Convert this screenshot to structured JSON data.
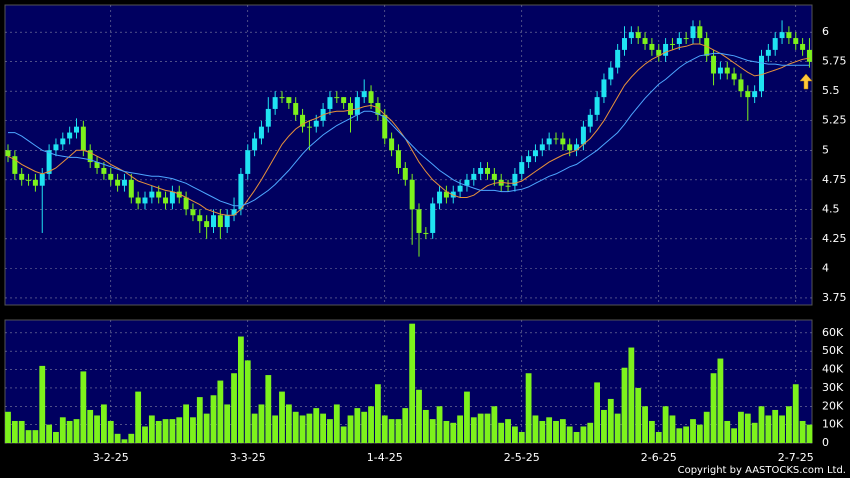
{
  "chart_data": [
    {
      "type": "candlestick",
      "up_color": "#1fe3f2",
      "down_color": "#7df21c",
      "panel_color": "#000060",
      "grid": true,
      "open": [
        5.0,
        4.95,
        4.8,
        4.75,
        4.75,
        4.7,
        4.8,
        5.0,
        5.05,
        5.1,
        5.15,
        5.2,
        5.0,
        4.9,
        4.85,
        4.8,
        4.75,
        4.7,
        4.75,
        4.6,
        4.55,
        4.6,
        4.65,
        4.6,
        4.55,
        4.65,
        4.6,
        4.5,
        4.45,
        4.4,
        4.35,
        4.45,
        4.35,
        4.45,
        4.5,
        4.8,
        5.0,
        5.1,
        5.2,
        5.35,
        5.45,
        5.45,
        5.4,
        5.3,
        5.2,
        5.2,
        5.25,
        5.35,
        5.45,
        5.45,
        5.4,
        5.3,
        5.45,
        5.5,
        5.4,
        5.3,
        5.1,
        5.0,
        4.85,
        4.75,
        4.5,
        4.3,
        4.3,
        4.55,
        4.65,
        4.6,
        4.65,
        4.7,
        4.75,
        4.8,
        4.85,
        4.8,
        4.75,
        4.7,
        4.7,
        4.8,
        4.9,
        4.95,
        5.0,
        5.05,
        5.1,
        5.1,
        5.05,
        5.0,
        5.05,
        5.2,
        5.3,
        5.45,
        5.6,
        5.7,
        5.85,
        5.95,
        6.0,
        5.95,
        5.9,
        5.85,
        5.8,
        5.9,
        5.9,
        5.95,
        5.95,
        6.05,
        5.95,
        5.8,
        5.65,
        5.7,
        5.65,
        5.6,
        5.5,
        5.45,
        5.5,
        5.8,
        5.85,
        5.95,
        6.0,
        5.95,
        5.9,
        5.85
      ],
      "high": [
        5.05,
        5.0,
        4.85,
        4.8,
        4.8,
        4.85,
        5.05,
        5.1,
        5.15,
        5.2,
        5.27,
        5.25,
        5.05,
        4.95,
        4.9,
        4.85,
        4.8,
        4.8,
        4.8,
        4.65,
        4.65,
        4.7,
        4.7,
        4.65,
        4.7,
        4.7,
        4.65,
        4.55,
        4.5,
        4.45,
        4.5,
        4.5,
        4.5,
        4.6,
        4.85,
        5.05,
        5.15,
        5.25,
        5.45,
        5.5,
        5.5,
        5.45,
        5.45,
        5.35,
        5.25,
        5.3,
        5.4,
        5.5,
        5.5,
        5.45,
        5.45,
        5.5,
        5.6,
        5.55,
        5.45,
        5.35,
        5.15,
        5.05,
        4.9,
        4.8,
        4.55,
        4.35,
        4.6,
        4.7,
        4.7,
        4.7,
        4.75,
        4.8,
        4.85,
        4.9,
        4.9,
        4.85,
        4.8,
        4.75,
        4.85,
        4.95,
        5.0,
        5.05,
        5.1,
        5.15,
        5.15,
        5.15,
        5.1,
        5.1,
        5.25,
        5.35,
        5.5,
        5.65,
        5.75,
        5.9,
        6.05,
        6.05,
        6.05,
        6.0,
        5.95,
        5.9,
        5.95,
        5.95,
        6.0,
        6.0,
        6.1,
        6.1,
        6.0,
        5.85,
        5.75,
        5.75,
        5.7,
        5.65,
        5.55,
        5.55,
        5.85,
        5.9,
        6.0,
        6.1,
        6.05,
        6.0,
        5.95,
        5.95
      ],
      "low": [
        4.9,
        4.75,
        4.7,
        4.7,
        4.65,
        4.3,
        4.75,
        4.95,
        5.0,
        5.05,
        5.1,
        4.95,
        4.85,
        4.8,
        4.75,
        4.7,
        4.65,
        4.65,
        4.55,
        4.5,
        4.5,
        4.55,
        4.55,
        4.5,
        4.5,
        4.55,
        4.45,
        4.4,
        4.3,
        4.25,
        4.3,
        4.25,
        4.3,
        4.4,
        4.45,
        4.75,
        4.95,
        5.05,
        5.15,
        5.3,
        5.4,
        5.35,
        5.25,
        5.15,
        5.0,
        5.15,
        5.2,
        5.3,
        5.4,
        5.35,
        5.15,
        5.25,
        5.4,
        5.35,
        5.25,
        5.05,
        4.95,
        4.8,
        4.7,
        4.2,
        4.1,
        4.25,
        4.25,
        4.5,
        4.55,
        4.55,
        4.6,
        4.65,
        4.7,
        4.75,
        4.75,
        4.7,
        4.65,
        4.65,
        4.65,
        4.75,
        4.85,
        4.9,
        4.95,
        5.0,
        5.05,
        5.0,
        4.95,
        4.95,
        5.0,
        5.15,
        5.25,
        5.4,
        5.55,
        5.65,
        5.8,
        5.9,
        5.9,
        5.85,
        5.8,
        5.75,
        5.75,
        5.85,
        5.85,
        5.9,
        5.9,
        5.9,
        5.75,
        5.55,
        5.6,
        5.6,
        5.55,
        5.45,
        5.25,
        5.4,
        5.45,
        5.75,
        5.8,
        5.9,
        5.9,
        5.85,
        5.8,
        5.7
      ],
      "close": [
        4.95,
        4.8,
        4.75,
        4.75,
        4.7,
        4.8,
        5.0,
        5.05,
        5.1,
        5.15,
        5.2,
        5.0,
        4.9,
        4.85,
        4.8,
        4.75,
        4.7,
        4.75,
        4.6,
        4.55,
        4.6,
        4.65,
        4.6,
        4.55,
        4.65,
        4.6,
        4.5,
        4.45,
        4.4,
        4.35,
        4.45,
        4.35,
        4.45,
        4.5,
        4.8,
        5.0,
        5.1,
        5.2,
        5.35,
        5.45,
        5.45,
        5.4,
        5.3,
        5.2,
        5.2,
        5.25,
        5.35,
        5.45,
        5.45,
        5.4,
        5.3,
        5.45,
        5.5,
        5.4,
        5.3,
        5.1,
        5.0,
        4.85,
        4.75,
        4.5,
        4.3,
        4.3,
        4.55,
        4.65,
        4.6,
        4.65,
        4.7,
        4.75,
        4.8,
        4.85,
        4.8,
        4.75,
        4.7,
        4.7,
        4.8,
        4.9,
        4.95,
        5.0,
        5.05,
        5.1,
        5.1,
        5.05,
        5.0,
        5.05,
        5.2,
        5.3,
        5.45,
        5.6,
        5.7,
        5.85,
        5.95,
        6.0,
        5.95,
        5.9,
        5.85,
        5.8,
        5.9,
        5.9,
        5.95,
        5.95,
        6.05,
        5.95,
        5.8,
        5.65,
        5.7,
        5.65,
        5.6,
        5.5,
        5.45,
        5.5,
        5.8,
        5.85,
        5.95,
        6.0,
        5.95,
        5.9,
        5.85,
        5.75
      ],
      "series": [
        {
          "color": "#e8913a",
          "values": [
            4.95,
            4.92,
            4.88,
            4.85,
            4.82,
            4.8,
            4.82,
            4.85,
            4.9,
            4.95,
            5.0,
            5.0,
            4.98,
            4.95,
            4.92,
            4.88,
            4.85,
            4.82,
            4.78,
            4.74,
            4.72,
            4.7,
            4.68,
            4.66,
            4.65,
            4.63,
            4.6,
            4.57,
            4.54,
            4.5,
            4.48,
            4.46,
            4.45,
            4.45,
            4.5,
            4.58,
            4.66,
            4.75,
            4.85,
            4.95,
            5.05,
            5.12,
            5.18,
            5.22,
            5.25,
            5.27,
            5.3,
            5.32,
            5.33,
            5.33,
            5.34,
            5.35,
            5.37,
            5.38,
            5.36,
            5.3,
            5.25,
            5.18,
            5.1,
            5.0,
            4.9,
            4.82,
            4.75,
            4.7,
            4.65,
            4.62,
            4.6,
            4.6,
            4.62,
            4.66,
            4.7,
            4.72,
            4.73,
            4.72,
            4.72,
            4.74,
            4.78,
            4.82,
            4.86,
            4.9,
            4.93,
            4.96,
            4.98,
            5.0,
            5.05,
            5.1,
            5.17,
            5.25,
            5.35,
            5.45,
            5.55,
            5.62,
            5.68,
            5.73,
            5.77,
            5.8,
            5.83,
            5.85,
            5.87,
            5.88,
            5.9,
            5.9,
            5.88,
            5.85,
            5.82,
            5.78,
            5.74,
            5.7,
            5.66,
            5.63,
            5.64,
            5.66,
            5.68,
            5.7,
            5.73,
            5.75,
            5.77,
            5.78
          ]
        },
        {
          "color": "#4da6ff",
          "values": [
            5.15,
            5.15,
            5.12,
            5.08,
            5.04,
            5.0,
            4.98,
            4.96,
            4.95,
            4.94,
            4.94,
            4.93,
            4.92,
            4.9,
            4.88,
            4.86,
            4.84,
            4.82,
            4.81,
            4.8,
            4.79,
            4.78,
            4.78,
            4.77,
            4.76,
            4.74,
            4.72,
            4.69,
            4.66,
            4.63,
            4.6,
            4.57,
            4.55,
            4.53,
            4.53,
            4.55,
            4.58,
            4.62,
            4.66,
            4.71,
            4.77,
            4.83,
            4.9,
            4.97,
            5.03,
            5.08,
            5.13,
            5.17,
            5.21,
            5.24,
            5.27,
            5.3,
            5.33,
            5.33,
            5.31,
            5.28,
            5.22,
            5.16,
            5.1,
            5.04,
            4.98,
            4.93,
            4.88,
            4.83,
            4.79,
            4.75,
            4.72,
            4.7,
            4.68,
            4.66,
            4.66,
            4.66,
            4.65,
            4.65,
            4.66,
            4.67,
            4.69,
            4.72,
            4.75,
            4.78,
            4.8,
            4.83,
            4.86,
            4.88,
            4.92,
            4.96,
            5.0,
            5.05,
            5.1,
            5.15,
            5.22,
            5.3,
            5.37,
            5.44,
            5.5,
            5.56,
            5.6,
            5.65,
            5.7,
            5.74,
            5.77,
            5.8,
            5.81,
            5.82,
            5.82,
            5.81,
            5.8,
            5.78,
            5.76,
            5.75,
            5.74,
            5.73,
            5.73,
            5.72,
            5.72,
            5.72,
            5.72,
            5.72
          ]
        }
      ],
      "ylim": [
        3.69,
        6.23
      ],
      "yticks": [
        3.75,
        4,
        4.25,
        4.5,
        4.75,
        5,
        5.25,
        5.5,
        5.75,
        6
      ]
    },
    {
      "type": "bar",
      "color": "#7df21c",
      "panel_color": "#000060",
      "grid": true,
      "categories": [
        null,
        null,
        null,
        null,
        null,
        null,
        null,
        null,
        null,
        null,
        null,
        null,
        null,
        null,
        null,
        "3-2-25",
        null,
        null,
        null,
        null,
        null,
        null,
        null,
        null,
        null,
        null,
        null,
        null,
        null,
        null,
        null,
        null,
        null,
        null,
        null,
        "3-3-25",
        null,
        null,
        null,
        null,
        null,
        null,
        null,
        null,
        null,
        null,
        null,
        null,
        null,
        null,
        null,
        null,
        null,
        null,
        null,
        "1-4-25",
        null,
        null,
        null,
        null,
        null,
        null,
        null,
        null,
        null,
        null,
        null,
        null,
        null,
        null,
        null,
        null,
        null,
        null,
        null,
        "2-5-25",
        null,
        null,
        null,
        null,
        null,
        null,
        null,
        null,
        null,
        null,
        null,
        null,
        null,
        null,
        null,
        null,
        null,
        null,
        null,
        "2-6-25",
        null,
        null,
        null,
        null,
        null,
        null,
        null,
        null,
        null,
        null,
        null,
        null,
        null,
        null,
        null,
        null,
        null,
        null,
        null,
        "2-7-25",
        null,
        null
      ],
      "values": [
        17000,
        12000,
        12000,
        7000,
        7000,
        42000,
        10000,
        6000,
        14000,
        12000,
        13000,
        39000,
        18000,
        15000,
        21000,
        12000,
        5000,
        2000,
        5000,
        28000,
        9000,
        15000,
        12000,
        13000,
        13000,
        14000,
        21000,
        14000,
        25000,
        16000,
        26000,
        34000,
        21000,
        38000,
        58000,
        45000,
        16000,
        21000,
        37000,
        15000,
        28000,
        21000,
        17000,
        15000,
        16000,
        19000,
        16000,
        13000,
        21000,
        9000,
        15000,
        19000,
        17000,
        20000,
        32000,
        15000,
        13000,
        13000,
        19000,
        65000,
        29000,
        18000,
        13000,
        20000,
        12000,
        11000,
        15000,
        28000,
        14000,
        16000,
        16000,
        20000,
        11000,
        13000,
        9000,
        6000,
        38000,
        15000,
        12000,
        14000,
        12000,
        13000,
        9000,
        6000,
        9000,
        11000,
        33000,
        18000,
        24000,
        16000,
        41000,
        52000,
        30000,
        20000,
        12000,
        6000,
        20000,
        15000,
        8000,
        9000,
        13000,
        10000,
        17000,
        38000,
        46000,
        12000,
        8000,
        17000,
        16000,
        11000,
        20000,
        15000,
        18000,
        15000,
        20000,
        32000,
        12000,
        10000
      ],
      "ylim": [
        0,
        67000
      ],
      "yticks": [
        0,
        {
          "value": 10000,
          "label": "10K"
        },
        {
          "value": 20000,
          "label": "20K"
        },
        {
          "value": 30000,
          "label": "30K"
        },
        {
          "value": 40000,
          "label": "40K"
        },
        {
          "value": 50000,
          "label": "50K"
        },
        {
          "value": 60000,
          "label": "60K"
        }
      ]
    }
  ],
  "copyright": "Copyright by AASTOCKS.com Ltd."
}
